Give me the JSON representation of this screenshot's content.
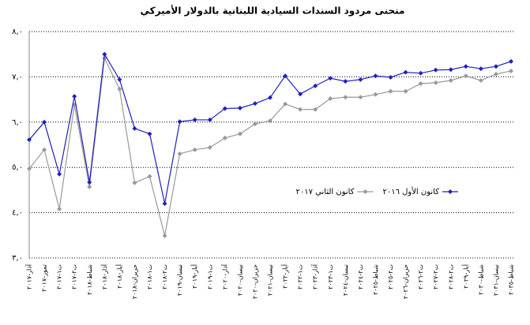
{
  "chart_data": {
    "type": "line",
    "title": "منحنى مردود السندات السيادية اللبنانية بالدولار الأميركي",
    "categories": [
      "آذار-٢٠١٧",
      "تموز-٢٠١٧",
      "ت١-٢٠١٧",
      "ت٢-٢٠١٧",
      "شباط-٢٠١٨",
      "آذار-٢٠١٨",
      "أيار-٢٠١٨",
      "حزيران-٢٠١٨",
      "ت١-٢٠١٨",
      "ت٢-٢٠١٨",
      "نيسان-٢٠١٩",
      "أيار-٢٠١٩",
      "ت١-٢٠١٩",
      "آذار-٢٠٢٠",
      "نيسان-٢٠٢٠",
      "حزيران-٢٠٢٠",
      "نيسان-٢٠٢١",
      "أيار-٢٠٢٢",
      "ت١-٢٠٢٢",
      "آذار-٢٠٢٣",
      "ت١-٢٠٢٣",
      "نيسان-٢٠٢٤",
      "ت٢-٢٠٢٤",
      "شباط-٢٠٢٥",
      "ت٢-٢٠٢٥",
      "حزيران-٢٠٢٦",
      "ت٢-٢٠٢٦",
      "ت٢-٢٠٢٧",
      "ت٢-٢٠٢٨",
      "أيار-٢٠٢٩",
      "شباط-٢٠٣٠",
      "نيسان-٢٠٣١",
      "شباط-٢٠٣٥"
    ],
    "series": [
      {
        "name": "كانون الأول ٢٠١٦",
        "color": "#1f1fbf",
        "values": [
          5.61,
          6.0,
          4.85,
          6.57,
          4.67,
          7.5,
          6.94,
          5.86,
          5.74,
          4.2,
          6.01,
          6.05,
          6.05,
          6.3,
          6.31,
          6.41,
          6.54,
          7.02,
          6.62,
          6.8,
          6.97,
          6.9,
          6.94,
          7.02,
          6.99,
          7.1,
          7.08,
          7.15,
          7.16,
          7.23,
          7.18,
          7.23,
          7.34
        ]
      },
      {
        "name": "كانون الثاني ٢٠١٧",
        "color": "#999999",
        "values": [
          4.97,
          5.39,
          4.08,
          6.38,
          4.57,
          7.41,
          6.73,
          4.66,
          4.8,
          3.49,
          5.3,
          5.39,
          5.44,
          5.65,
          5.74,
          5.96,
          6.03,
          6.4,
          6.28,
          6.28,
          6.52,
          6.55,
          6.55,
          6.61,
          6.68,
          6.68,
          6.85,
          6.87,
          6.92,
          7.02,
          6.92,
          7.06,
          7.13
        ]
      }
    ],
    "ylim": [
      3,
      8
    ],
    "yticks": [
      {
        "value": 3,
        "label": "٣,٠"
      },
      {
        "value": 4,
        "label": "٤,٠"
      },
      {
        "value": 5,
        "label": "٥,٠"
      },
      {
        "value": 6,
        "label": "٦,٠"
      },
      {
        "value": 7,
        "label": "٧,٠"
      },
      {
        "value": 8,
        "label": "٨,٠"
      }
    ],
    "grid": true,
    "legend": "center"
  }
}
